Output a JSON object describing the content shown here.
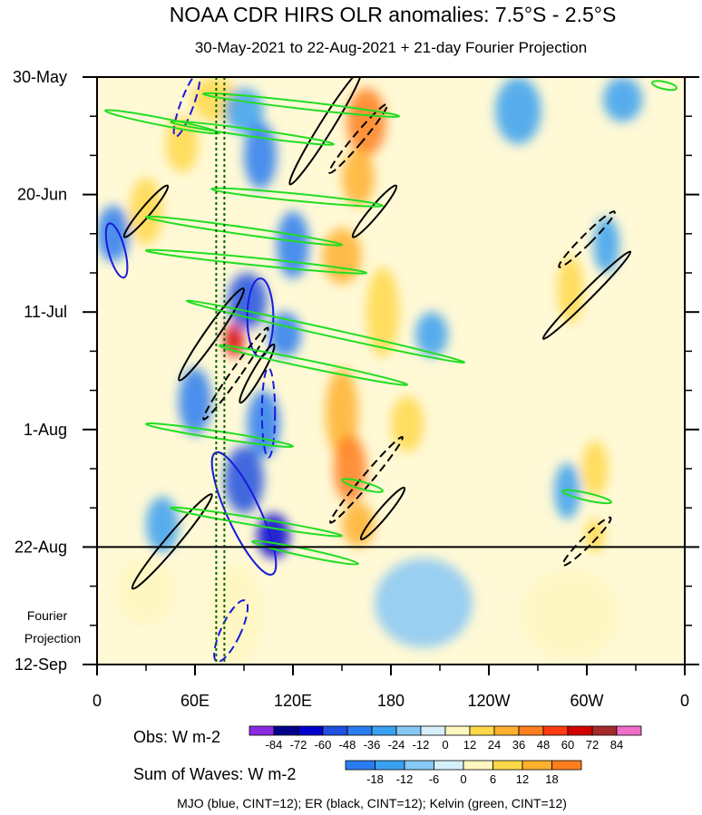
{
  "chart_data": {
    "type": "heatmap",
    "title": "NOAA CDR HIRS OLR anomalies: 7.5°S - 2.5°S",
    "subtitle": "30-May-2021 to 22-Aug-2021 + 21-day Fourier Projection",
    "x_ticks": [
      {
        "lon": 0,
        "label": "0"
      },
      {
        "lon": 60,
        "label": "60E"
      },
      {
        "lon": 120,
        "label": "120E"
      },
      {
        "lon": 180,
        "label": "180"
      },
      {
        "lon": 240,
        "label": "120W"
      },
      {
        "lon": 300,
        "label": "60W"
      },
      {
        "lon": 360,
        "label": "0"
      }
    ],
    "x_range": [
      0,
      360
    ],
    "y_ticks": [
      {
        "day": 0,
        "label": "30-May"
      },
      {
        "day": 21,
        "label": "20-Jun"
      },
      {
        "day": 42,
        "label": "11-Jul"
      },
      {
        "day": 63,
        "label": "1-Aug"
      },
      {
        "day": 84,
        "label": "22-Aug"
      },
      {
        "day": 105,
        "label": "12-Sep"
      }
    ],
    "y_range": [
      0,
      105
    ],
    "observation_end_day": 84,
    "projection_label": [
      "Fourier",
      "Projection"
    ],
    "mjo_reference_lon": [
      73,
      78
    ],
    "obs_colorbar": {
      "title": "Obs: W m-2",
      "labels": [
        "-84",
        "-72",
        "-60",
        "-48",
        "-36",
        "-24",
        "-12",
        "0",
        "12",
        "24",
        "36",
        "48",
        "60",
        "72",
        "84"
      ],
      "colors": [
        "#8a2be2",
        "#00008b",
        "#0000cd",
        "#2050e0",
        "#2a7df0",
        "#3aa0f0",
        "#87c8f5",
        "#d5f0fb",
        "#fff7c0",
        "#ffd84a",
        "#ffb02e",
        "#ff7f1f",
        "#ff3b10",
        "#d40000",
        "#a52a2a",
        "#ee6ec8"
      ]
    },
    "waves_colorbar": {
      "title": "Sum of Waves: W m-2",
      "labels": [
        "-18",
        "-12",
        "-6",
        "0",
        "6",
        "12",
        "18"
      ],
      "colors": [
        "#2a7df0",
        "#3aa0f0",
        "#87c8f5",
        "#d5f0fb",
        "#fff7c0",
        "#ffd84a",
        "#ffb02e",
        "#ff7f1f"
      ]
    },
    "footer": "MJO (blue, CINT=12); ER (black, CINT=12); Kelvin (green, CINT=12)",
    "anomaly_regions": [
      {
        "lon": 72,
        "day": 4,
        "rlon": 14,
        "rday": 4,
        "v": 24
      },
      {
        "lon": 90,
        "day": 6,
        "rlon": 12,
        "rday": 4,
        "v": -24
      },
      {
        "lon": 165,
        "day": 8,
        "rlon": 12,
        "rday": 6,
        "v": 48
      },
      {
        "lon": 52,
        "day": 12,
        "rlon": 10,
        "rday": 5,
        "v": 24
      },
      {
        "lon": 100,
        "day": 14,
        "rlon": 10,
        "rday": 6,
        "v": -36
      },
      {
        "lon": 258,
        "day": 6,
        "rlon": 14,
        "rday": 6,
        "v": -24
      },
      {
        "lon": 322,
        "day": 4,
        "rlon": 12,
        "rday": 4,
        "v": -24
      },
      {
        "lon": 160,
        "day": 18,
        "rlon": 10,
        "rday": 5,
        "v": 36
      },
      {
        "lon": 10,
        "day": 28,
        "rlon": 10,
        "rday": 5,
        "v": -36
      },
      {
        "lon": 30,
        "day": 24,
        "rlon": 10,
        "rday": 6,
        "v": 24
      },
      {
        "lon": 120,
        "day": 30,
        "rlon": 10,
        "rday": 6,
        "v": -36
      },
      {
        "lon": 150,
        "day": 32,
        "rlon": 12,
        "rday": 5,
        "v": 36
      },
      {
        "lon": 92,
        "day": 40,
        "rlon": 12,
        "rday": 5,
        "v": -48
      },
      {
        "lon": 115,
        "day": 46,
        "rlon": 10,
        "rday": 4,
        "v": -36
      },
      {
        "lon": 84,
        "day": 47,
        "rlon": 6,
        "rday": 3,
        "v": 72
      },
      {
        "lon": 175,
        "day": 42,
        "rlon": 10,
        "rday": 8,
        "v": 24
      },
      {
        "lon": 205,
        "day": 46,
        "rlon": 10,
        "rday": 4,
        "v": -24
      },
      {
        "lon": 290,
        "day": 38,
        "rlon": 8,
        "rday": 6,
        "v": 24
      },
      {
        "lon": 312,
        "day": 30,
        "rlon": 8,
        "rday": 5,
        "v": -24
      },
      {
        "lon": 60,
        "day": 58,
        "rlon": 10,
        "rday": 6,
        "v": -36
      },
      {
        "lon": 102,
        "day": 62,
        "rlon": 10,
        "rday": 6,
        "v": -36
      },
      {
        "lon": 150,
        "day": 60,
        "rlon": 10,
        "rday": 8,
        "v": 36
      },
      {
        "lon": 190,
        "day": 62,
        "rlon": 10,
        "rday": 5,
        "v": 24
      },
      {
        "lon": 90,
        "day": 72,
        "rlon": 12,
        "rday": 6,
        "v": -48
      },
      {
        "lon": 155,
        "day": 70,
        "rlon": 10,
        "rday": 6,
        "v": 48
      },
      {
        "lon": 288,
        "day": 74,
        "rlon": 8,
        "rday": 5,
        "v": -24
      },
      {
        "lon": 305,
        "day": 70,
        "rlon": 8,
        "rday": 5,
        "v": 24
      },
      {
        "lon": 108,
        "day": 82,
        "rlon": 10,
        "rday": 4,
        "v": -60
      },
      {
        "lon": 40,
        "day": 80,
        "rlon": 10,
        "rday": 5,
        "v": -24
      },
      {
        "lon": 160,
        "day": 80,
        "rlon": 10,
        "rday": 4,
        "v": 36
      },
      {
        "lon": 305,
        "day": 82,
        "rlon": 6,
        "rday": 3,
        "v": 24
      },
      {
        "lon": 85,
        "day": 96,
        "rlon": 16,
        "rday": 9,
        "v": 12
      },
      {
        "lon": 200,
        "day": 94,
        "rlon": 30,
        "rday": 8,
        "v": -12
      },
      {
        "lon": 30,
        "day": 92,
        "rlon": 18,
        "rday": 6,
        "v": 12
      },
      {
        "lon": 290,
        "day": 96,
        "rlon": 30,
        "rday": 8,
        "v": 12
      }
    ],
    "mjo_contours": [
      {
        "lon": 12,
        "day": 31,
        "rlon": 5,
        "rday": 5,
        "rot": -15,
        "dash": false
      },
      {
        "lon": 100,
        "day": 43,
        "rlon": 8,
        "rday": 7,
        "rot": 0,
        "dash": false
      },
      {
        "lon": 90,
        "day": 78,
        "rlon": 10,
        "rday": 12,
        "rot": -25,
        "dash": false
      },
      {
        "lon": 82,
        "day": 99,
        "rlon": 6,
        "rday": 6,
        "rot": 25,
        "dash": true
      },
      {
        "lon": 55,
        "day": 5,
        "rlon": 4,
        "rday": 6,
        "rot": 20,
        "dash": true
      },
      {
        "lon": 105,
        "day": 60,
        "rlon": 4,
        "rday": 8,
        "rot": 0,
        "dash": true
      }
    ],
    "er_contours": [
      {
        "lon": 70,
        "day": 46,
        "rlon": 4,
        "rday": 10,
        "rot": 35,
        "dash": false
      },
      {
        "lon": 46,
        "day": 83,
        "rlon": 4,
        "rday": 11,
        "rot": 40,
        "dash": false
      },
      {
        "lon": 140,
        "day": 9,
        "rlon": 4,
        "rday": 12,
        "rot": 32,
        "dash": false
      },
      {
        "lon": 170,
        "day": 24,
        "rlon": 3,
        "rday": 6,
        "rot": 40,
        "dash": false
      },
      {
        "lon": 300,
        "day": 39,
        "rlon": 3,
        "rday": 11,
        "rot": 45,
        "dash": false
      },
      {
        "lon": 30,
        "day": 24,
        "rlon": 3,
        "rday": 6,
        "rot": 40,
        "dash": false
      },
      {
        "lon": 98,
        "day": 53,
        "rlon": 3,
        "rday": 6,
        "rot": 30,
        "dash": false
      },
      {
        "lon": 175,
        "day": 78,
        "rlon": 3,
        "rday": 6,
        "rot": 40,
        "dash": false
      },
      {
        "lon": 160,
        "day": 11,
        "rlon": 3,
        "rday": 8,
        "rot": 40,
        "dash": true
      },
      {
        "lon": 85,
        "day": 53,
        "rlon": 3,
        "rday": 10,
        "rot": 35,
        "dash": true
      },
      {
        "lon": 165,
        "day": 72,
        "rlon": 3,
        "rday": 10,
        "rot": 40,
        "dash": true
      },
      {
        "lon": 300,
        "day": 29,
        "rlon": 3,
        "rday": 7,
        "rot": 45,
        "dash": true
      },
      {
        "lon": 300,
        "day": 83,
        "rlon": 3,
        "rday": 6,
        "rot": 45,
        "dash": true
      }
    ],
    "kelvin_bands": [
      {
        "lon0": 5,
        "day0": 6,
        "lon1": 75,
        "day1": 10
      },
      {
        "lon0": 65,
        "day0": 3,
        "lon1": 185,
        "day1": 7
      },
      {
        "lon0": 45,
        "day0": 8,
        "lon1": 145,
        "day1": 12
      },
      {
        "lon0": 70,
        "day0": 20,
        "lon1": 175,
        "day1": 23
      },
      {
        "lon0": 30,
        "day0": 25,
        "lon1": 150,
        "day1": 30
      },
      {
        "lon0": 30,
        "day0": 31,
        "lon1": 165,
        "day1": 35
      },
      {
        "lon0": 55,
        "day0": 40,
        "lon1": 225,
        "day1": 51
      },
      {
        "lon0": 75,
        "day0": 48,
        "lon1": 190,
        "day1": 55
      },
      {
        "lon0": 30,
        "day0": 62,
        "lon1": 120,
        "day1": 66
      },
      {
        "lon0": 45,
        "day0": 77,
        "lon1": 150,
        "day1": 82
      },
      {
        "lon0": 150,
        "day0": 72,
        "lon1": 175,
        "day1": 74
      },
      {
        "lon0": 285,
        "day0": 74,
        "lon1": 315,
        "day1": 76
      },
      {
        "lon0": 95,
        "day0": 83,
        "lon1": 160,
        "day1": 87
      },
      {
        "lon0": 340,
        "day0": 1,
        "lon1": 355,
        "day1": 2
      }
    ]
  }
}
